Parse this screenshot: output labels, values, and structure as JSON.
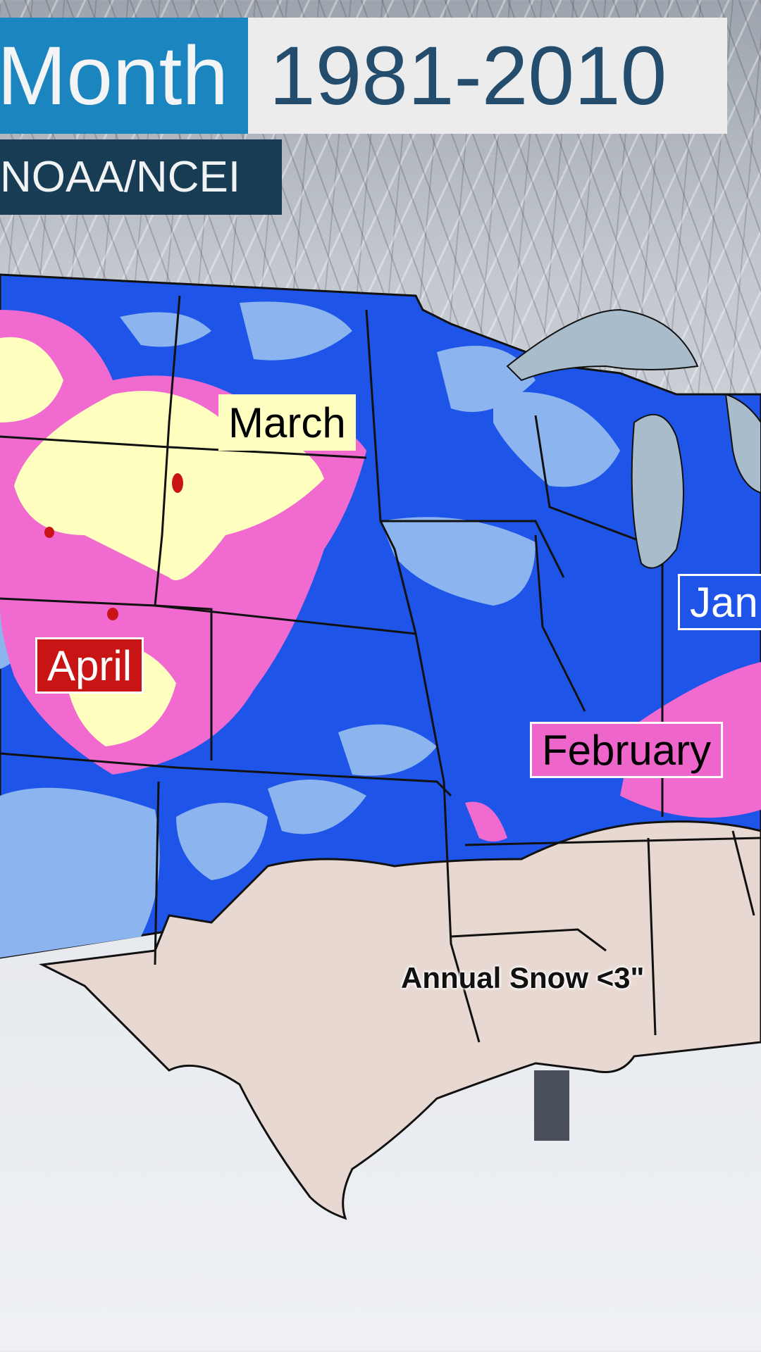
{
  "header": {
    "title_left": "Month",
    "title_right": "1981-2010",
    "source": "NOAA/NCEI"
  },
  "map": {
    "labels": {
      "march": "March",
      "april": "April",
      "january": "Jan",
      "february": "February",
      "annual_snow": "Annual Snow <3\""
    },
    "colors": {
      "january": "#1e55e8",
      "december_light": "#8cb4ee",
      "february": "#f06ad0",
      "march": "#ffffc0",
      "april": "#c81414",
      "low_snow": "#e8d8d2",
      "lakes": "#a9bccb"
    }
  }
}
